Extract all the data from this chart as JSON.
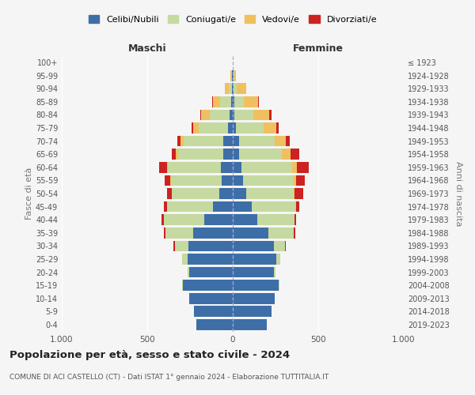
{
  "age_groups": [
    "0-4",
    "5-9",
    "10-14",
    "15-19",
    "20-24",
    "25-29",
    "30-34",
    "35-39",
    "40-44",
    "45-49",
    "50-54",
    "55-59",
    "60-64",
    "65-69",
    "70-74",
    "75-79",
    "80-84",
    "85-89",
    "90-94",
    "95-99",
    "100+"
  ],
  "birth_years": [
    "2019-2023",
    "2014-2018",
    "2009-2013",
    "2004-2008",
    "1999-2003",
    "1994-1998",
    "1989-1993",
    "1984-1988",
    "1979-1983",
    "1974-1978",
    "1969-1973",
    "1964-1968",
    "1959-1963",
    "1954-1958",
    "1949-1953",
    "1944-1948",
    "1939-1943",
    "1934-1938",
    "1929-1933",
    "1924-1928",
    "≤ 1923"
  ],
  "colors": {
    "celibe": "#3d6ea8",
    "coniugato": "#c5d9a0",
    "vedovo": "#f0c060",
    "divorziato": "#cc2222"
  },
  "maschi": {
    "celibe": [
      215,
      225,
      255,
      290,
      255,
      265,
      260,
      230,
      165,
      115,
      80,
      65,
      70,
      55,
      55,
      30,
      20,
      10,
      5,
      3,
      2
    ],
    "coniugato": [
      0,
      0,
      0,
      5,
      10,
      30,
      80,
      165,
      240,
      270,
      275,
      295,
      310,
      265,
      230,
      170,
      115,
      65,
      20,
      5,
      0
    ],
    "vedovo": [
      0,
      0,
      0,
      0,
      0,
      0,
      0,
      0,
      0,
      0,
      0,
      5,
      5,
      15,
      20,
      30,
      50,
      40,
      20,
      5,
      0
    ],
    "divorziato": [
      0,
      0,
      0,
      0,
      0,
      0,
      5,
      10,
      10,
      20,
      30,
      35,
      45,
      20,
      20,
      10,
      5,
      5,
      0,
      0,
      0
    ]
  },
  "femmine": {
    "nubile": [
      200,
      225,
      245,
      270,
      240,
      255,
      240,
      210,
      145,
      110,
      80,
      60,
      50,
      35,
      35,
      20,
      10,
      10,
      5,
      5,
      2
    ],
    "coniugata": [
      0,
      0,
      0,
      5,
      10,
      25,
      65,
      145,
      215,
      255,
      275,
      295,
      295,
      250,
      210,
      160,
      110,
      55,
      20,
      5,
      0
    ],
    "vedova": [
      0,
      0,
      0,
      0,
      0,
      0,
      0,
      0,
      0,
      5,
      5,
      15,
      30,
      55,
      65,
      75,
      95,
      85,
      55,
      10,
      0
    ],
    "divorziata": [
      0,
      0,
      0,
      0,
      0,
      0,
      5,
      10,
      10,
      20,
      50,
      50,
      70,
      50,
      25,
      15,
      10,
      5,
      0,
      0,
      0
    ]
  },
  "title": "Popolazione per età, sesso e stato civile - 2024",
  "subtitle": "COMUNE DI ACI CASTELLO (CT) - Dati ISTAT 1° gennaio 2024 - Elaborazione TUTTITALIA.IT",
  "xlabel_left": "Maschi",
  "xlabel_right": "Femmine",
  "ylabel_left": "Fasce di età",
  "ylabel_right": "Anni di nascita",
  "legend_labels": [
    "Celibi/Nubili",
    "Coniugati/e",
    "Vedovi/e",
    "Divorziati/e"
  ],
  "xlim": 1000,
  "background_color": "#f5f5f5"
}
